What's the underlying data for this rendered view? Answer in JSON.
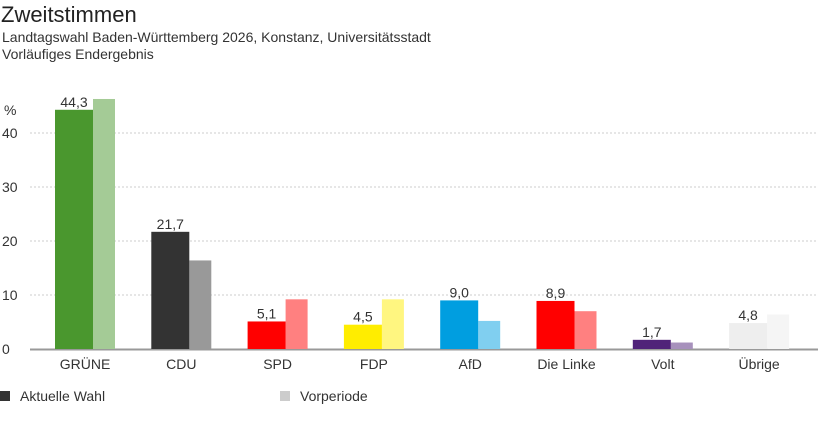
{
  "header": {
    "title": "Zweitstimmen",
    "subtitle": "Landtagswahl Baden-Württemberg 2026, Konstanz, Universitätsstadt",
    "status": "Vorläufiges Endergebnis"
  },
  "chart_data": {
    "type": "bar",
    "title": "Zweitstimmen",
    "ylabel": "%",
    "ylim": [
      0,
      48
    ],
    "yticks": [
      "0",
      "10",
      "20",
      "30",
      "40"
    ],
    "ytick_values": [
      0,
      10,
      20,
      30,
      40
    ],
    "grid": true,
    "categories": [
      "GRÜNE",
      "CDU",
      "SPD",
      "FDP",
      "AfD",
      "Die Linke",
      "Volt",
      "Übrige"
    ],
    "series": [
      {
        "name": "Aktuelle Wahl",
        "values": [
          44.3,
          21.7,
          5.1,
          4.5,
          9.0,
          8.9,
          1.7,
          4.8
        ],
        "labels": [
          "44,3",
          "21,7",
          "5,1",
          "4,5",
          "9,0",
          "8,9",
          "1,7",
          "4,8"
        ],
        "colors": [
          "#4a972e",
          "#333333",
          "#ff0000",
          "#ffed00",
          "#009ee0",
          "#ff0000",
          "#502379",
          "#eeeeee"
        ]
      },
      {
        "name": "Vorperiode",
        "values": [
          46.3,
          16.4,
          9.2,
          9.2,
          5.2,
          7.0,
          1.2,
          6.4
        ],
        "colors": [
          "#a4cb96",
          "#999999",
          "#ff8080",
          "#fff680",
          "#80cff0",
          "#ff8080",
          "#a791bc",
          "#f5f5f5"
        ]
      }
    ],
    "legend": {
      "position": "bottom-left",
      "items": [
        {
          "label": "Aktuelle Wahl",
          "color": "#333333"
        },
        {
          "label": "Vorperiode",
          "color": "#cccccc"
        }
      ]
    }
  }
}
